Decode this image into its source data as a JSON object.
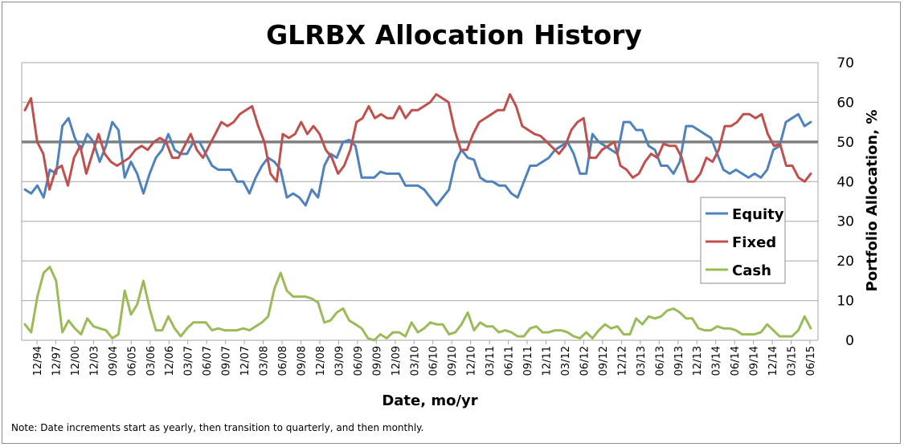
{
  "chart_data": {
    "type": "line",
    "title": "GLRBX Allocation History",
    "xlabel": "Date, mo/yr",
    "ylabel": "Portfolio  Allocation, %",
    "ylim": [
      0,
      70
    ],
    "yticks": [
      0,
      10,
      20,
      30,
      40,
      50,
      60,
      70
    ],
    "y_axis_side": "right",
    "grid": true,
    "legend_position": "right-middle",
    "note": "Note: Date increments start as yearly, then transition to quarterly, and then monthly.",
    "reference_line": {
      "value": 50,
      "color": "#7f7f7f"
    },
    "tick_labels": [
      "12/94",
      "12/97",
      "12/00",
      "12/03",
      "09/04",
      "06/05",
      "03/06",
      "12/06",
      "03/07",
      "06/07",
      "09/07",
      "12/07",
      "03/08",
      "06/08",
      "09/08",
      "12/08",
      "03/09",
      "06/09",
      "09/09",
      "12/09",
      "03/10",
      "06/10",
      "09/10",
      "12/10",
      "03/11",
      "06/11",
      "09/11",
      "12/11",
      "03/12",
      "06/12",
      "09/12",
      "12/12",
      "03/13",
      "06/13",
      "09/13",
      "12/13",
      "03/14",
      "06/14",
      "09/14",
      "12/14",
      "03/15",
      "06/15"
    ],
    "series": [
      {
        "name": "Equity",
        "color": "#4f81bd",
        "values": [
          38,
          37,
          39,
          36,
          43,
          42,
          54,
          56,
          51,
          48,
          52,
          50,
          45,
          49,
          55,
          53,
          41,
          45,
          42,
          37,
          42,
          46,
          48,
          52,
          48,
          47,
          47,
          50,
          50,
          47,
          44,
          43,
          43,
          43,
          40,
          40,
          37,
          41,
          44,
          46,
          45,
          43,
          36,
          37,
          36,
          34,
          38,
          36,
          44,
          47,
          46,
          50,
          50.5,
          49,
          41,
          41,
          41,
          42.5,
          42,
          42,
          42,
          39,
          39,
          39,
          38,
          36,
          34,
          36,
          38,
          45,
          48,
          46,
          45.5,
          41,
          40,
          40,
          39,
          39,
          37,
          36,
          40,
          44,
          44,
          45,
          46,
          48,
          49,
          50,
          47,
          42,
          42,
          52,
          50,
          49,
          48,
          47,
          55,
          55,
          53,
          53,
          49,
          48,
          44,
          44,
          42,
          45,
          54,
          54,
          53,
          52,
          51,
          47,
          43,
          42,
          43,
          42,
          41,
          42,
          41,
          43,
          48,
          49,
          55,
          56,
          57,
          54,
          55
        ]
      },
      {
        "name": "Fixed",
        "color": "#c0504d",
        "values": [
          58,
          61,
          50,
          47,
          38,
          43,
          44,
          39,
          46,
          49,
          42,
          47,
          52,
          47,
          45,
          44,
          45,
          46,
          48,
          49,
          48,
          50,
          51,
          50,
          46,
          46,
          49,
          52,
          48,
          46,
          49,
          52,
          55,
          54,
          55,
          57,
          58,
          59,
          54,
          50,
          42,
          40,
          52,
          51,
          52,
          55,
          52,
          54,
          52,
          48,
          46,
          42,
          44,
          48,
          55,
          56,
          59,
          56,
          57,
          56,
          56,
          59,
          56,
          58,
          58,
          59,
          60,
          62,
          61,
          60,
          53,
          48,
          48,
          52,
          55,
          56,
          57,
          58,
          58,
          62,
          59,
          54,
          53,
          52,
          51.5,
          50,
          48.5,
          47,
          49,
          53,
          55,
          56,
          46,
          46,
          48,
          49,
          50,
          44,
          43,
          41,
          42,
          45,
          47,
          46,
          49.5,
          49,
          49,
          46,
          40,
          40,
          42,
          46,
          45,
          48,
          54,
          54,
          55,
          57,
          57,
          56,
          57,
          52,
          49,
          49.5,
          44,
          44,
          41,
          40,
          42
        ]
      },
      {
        "name": "Cash",
        "color": "#9bbb59",
        "values": [
          4,
          2,
          11,
          17,
          18.5,
          15,
          2,
          5,
          3,
          1.5,
          5.5,
          3.5,
          3,
          2.5,
          0.5,
          1.5,
          12.5,
          6.5,
          9,
          15,
          8,
          2.5,
          2.5,
          6,
          3,
          1,
          3,
          4.5,
          4.5,
          4.5,
          2.5,
          3,
          2.5,
          2.5,
          2.5,
          3,
          2.5,
          3.5,
          4.5,
          6,
          13,
          17,
          12.5,
          11,
          11,
          11,
          10.5,
          9.5,
          4.5,
          5,
          7,
          8,
          5,
          4,
          3,
          0.5,
          0,
          1.5,
          0.5,
          2,
          2,
          1,
          4.5,
          2,
          3,
          4.5,
          4,
          4,
          1.5,
          2,
          4,
          7,
          2.5,
          4.5,
          3.5,
          3.5,
          2,
          2.5,
          2,
          1,
          1,
          3,
          3.5,
          2,
          2,
          2.5,
          2.5,
          2,
          1,
          0.5,
          2,
          0.5,
          2.5,
          4,
          3,
          3.5,
          1.5,
          1.5,
          5.5,
          4,
          6,
          5.5,
          6,
          7.5,
          8,
          7,
          5.5,
          5.5,
          3,
          2.5,
          2.5,
          3.5,
          3,
          3,
          2.5,
          1.5,
          1.5,
          1.5,
          2,
          4,
          2.5,
          1,
          1,
          1,
          2.5,
          6,
          3
        ]
      }
    ]
  }
}
